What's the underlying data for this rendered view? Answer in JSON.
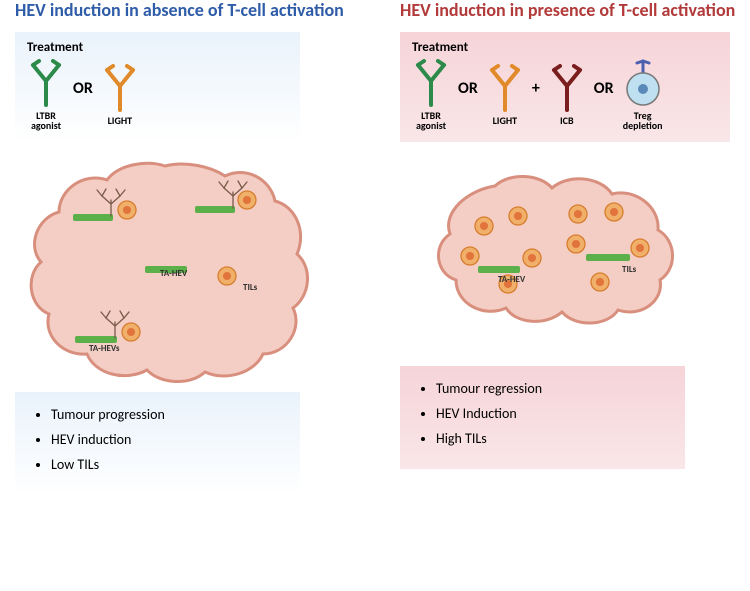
{
  "left": {
    "title": "HEV induction in absence of T-cell activation",
    "title_color": "#2f5ca8",
    "treatment_label": "Treatment",
    "box_gradient_from": "#e9f2fb",
    "box_gradient_to": "#ffffff",
    "agents": [
      {
        "name": "ltbr",
        "label": "LTBR\nagonist",
        "color": "#2c8a4b"
      },
      {
        "name": "light",
        "label": "LIGHT",
        "color": "#e08a2a"
      }
    ],
    "op_between": "OR",
    "tumor_labels": {
      "hev": "TA-HEV",
      "hevs": "TA-HEVs",
      "tils": "TILs"
    },
    "outcomes": [
      "Tumour progression",
      "HEV induction",
      "Low TILs"
    ]
  },
  "right": {
    "title": "HEV induction in presence of T-cell activation",
    "title_color": "#b23a3a",
    "treatment_label": "Treatment",
    "box_gradient_from": "#f6d4d8",
    "box_gradient_to": "#f9e6e8",
    "agents_left": [
      {
        "name": "ltbr",
        "label": "LTBR\nagonist",
        "color": "#2c8a4b"
      },
      {
        "name": "light",
        "label": "LIGHT",
        "color": "#e08a2a"
      }
    ],
    "agents_right": [
      {
        "name": "icb",
        "label": "ICB",
        "color": "#7a1d1d",
        "type": "antibody"
      },
      {
        "name": "treg",
        "label": "Treg\ndepletion",
        "type": "cell",
        "fill": "#bfe0f0",
        "nucleus": "#5a88b8",
        "receptor": "#4a5fb0"
      }
    ],
    "op1": "OR",
    "op_plus": "+",
    "op2": "OR",
    "tumor_labels": {
      "hev": "TA-HEV",
      "tils": "TILs"
    },
    "outcomes": [
      "Tumour regression",
      "HEV Induction",
      "High TILs"
    ]
  },
  "shared": {
    "tumor_fill": "#f4cec4",
    "tumor_stroke": "#d98f7e",
    "hev_color": "#5bb04a",
    "til_fill": "#f0b06a",
    "til_stroke": "#d67d2e",
    "til_nucleus": "#e0743a",
    "dendrite_color": "#7a5a4a"
  }
}
